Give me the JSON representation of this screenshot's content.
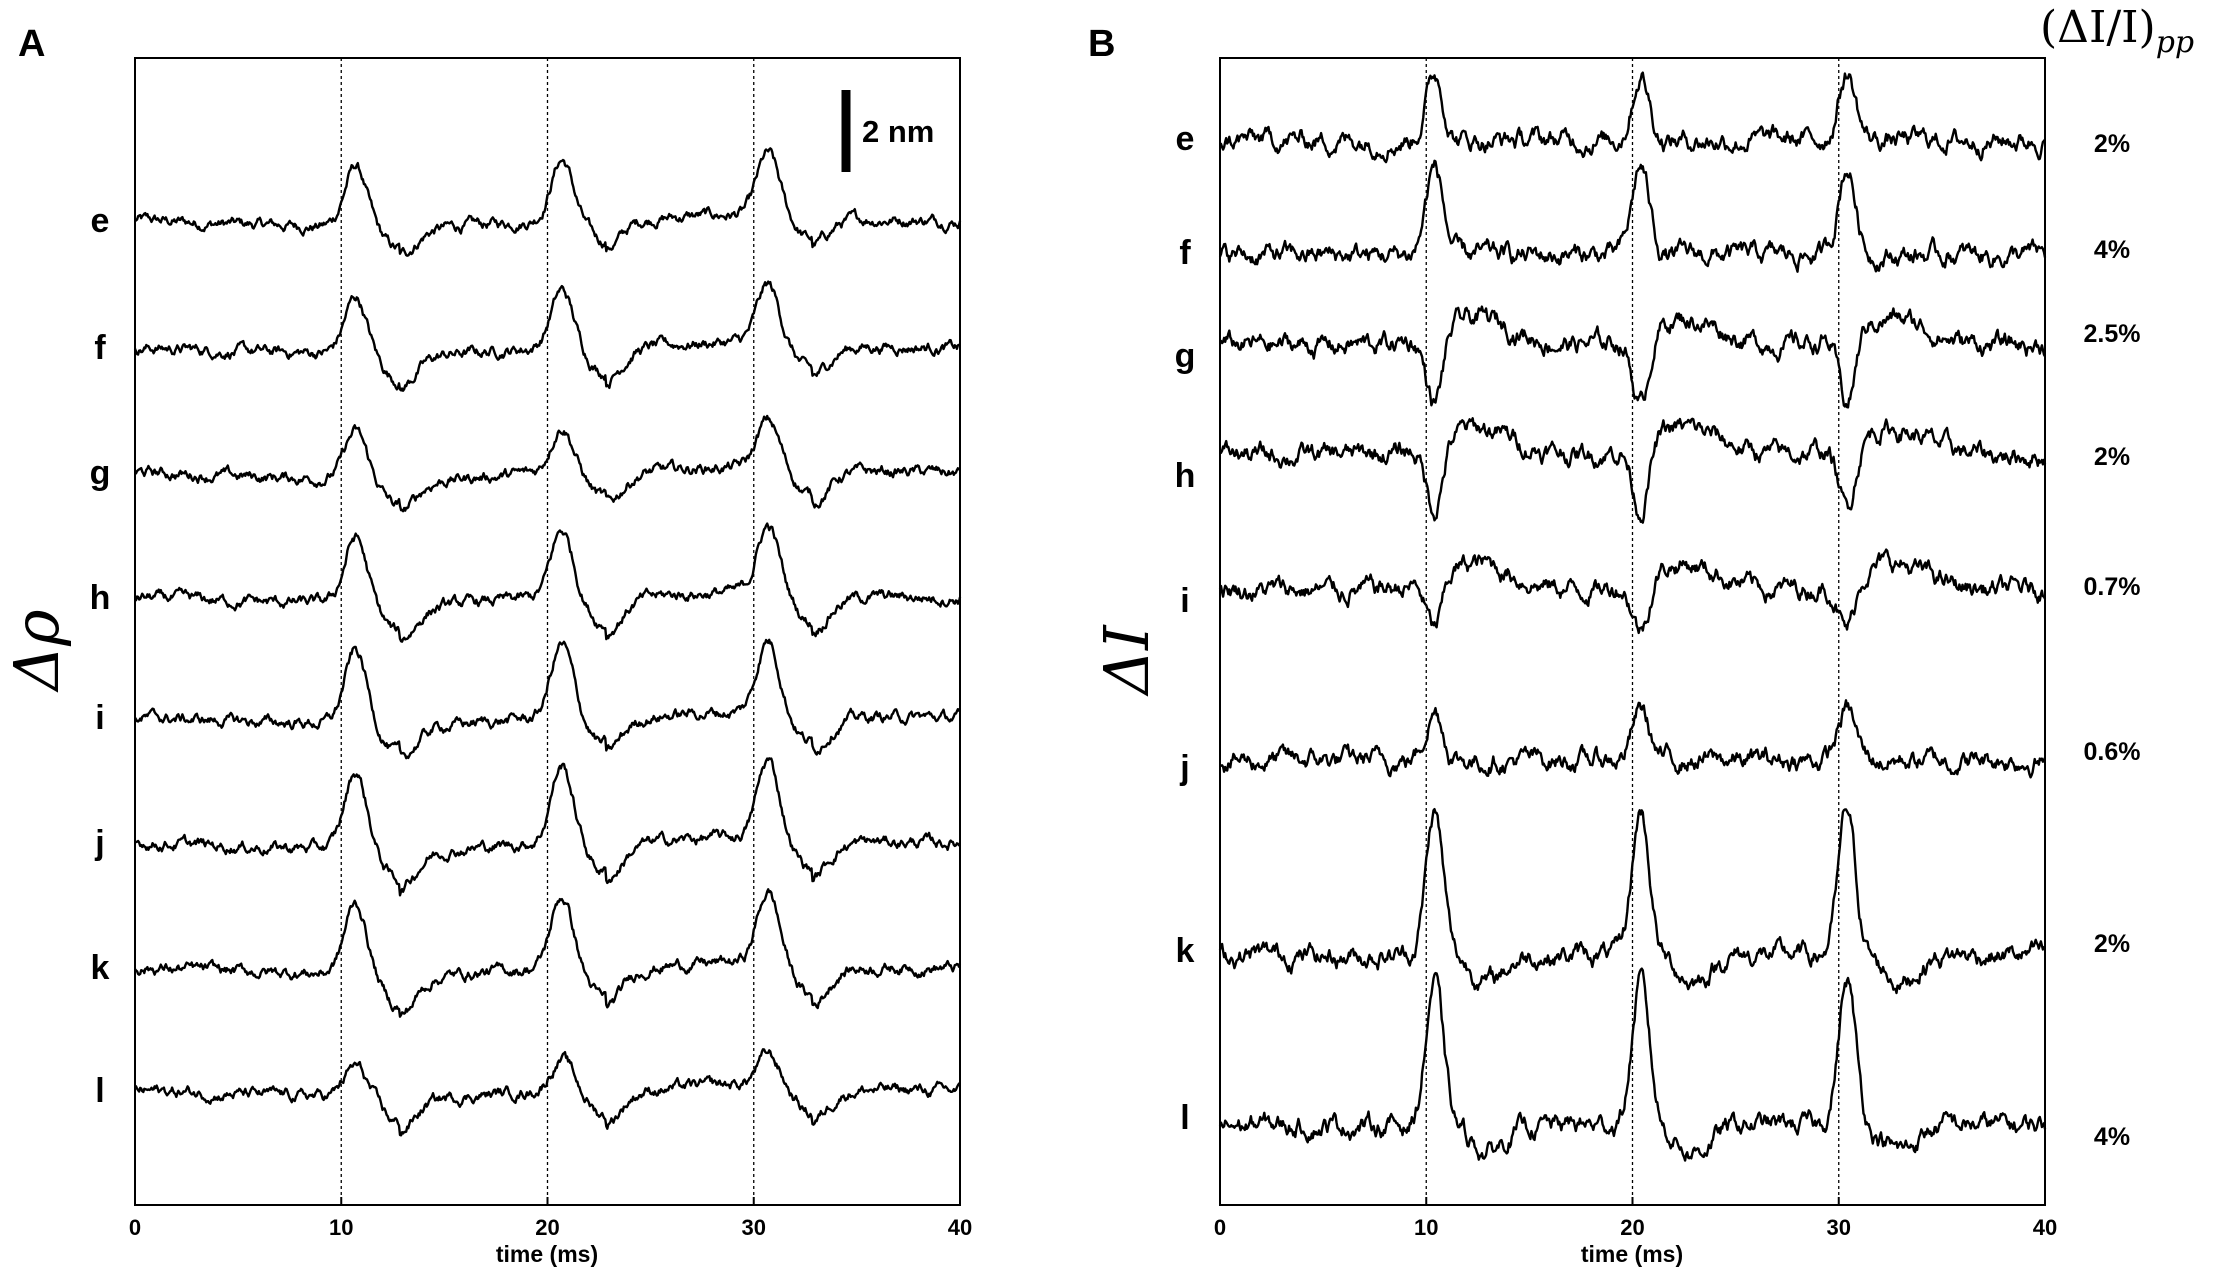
{
  "chart_data": [
    {
      "type": "line",
      "panel_label": "A",
      "ylabel": "Δρ",
      "xlabel": "time (ms)",
      "xlim": [
        0,
        40
      ],
      "x_ticks": [
        "0",
        "10",
        "20",
        "30",
        "40"
      ],
      "vertical_markers_ms": [
        10,
        20,
        30
      ],
      "scale_bar_label": "2 nm",
      "series": [
        {
          "name": "e",
          "baseline": 0,
          "peak": 3.0,
          "trough": -1.2
        },
        {
          "name": "f",
          "baseline": 0,
          "peak": 2.8,
          "trough": -1.4
        },
        {
          "name": "g",
          "baseline": 0,
          "peak": 2.3,
          "trough": -1.4
        },
        {
          "name": "h",
          "baseline": 0,
          "peak": 3.3,
          "trough": -1.5
        },
        {
          "name": "i",
          "baseline": 0,
          "peak": 3.6,
          "trough": -1.5
        },
        {
          "name": "j",
          "baseline": 0,
          "peak": 3.8,
          "trough": -1.6
        },
        {
          "name": "k",
          "baseline": 0,
          "peak": 3.5,
          "trough": -1.7
        },
        {
          "name": "l",
          "baseline": 0,
          "peak": 1.5,
          "trough": -1.4
        }
      ]
    },
    {
      "type": "line",
      "panel_label": "B",
      "ylabel": "ΔI",
      "xlabel": "time (ms)",
      "xlim": [
        0,
        40
      ],
      "x_ticks": [
        "0",
        "10",
        "20",
        "30",
        "40"
      ],
      "vertical_markers_ms": [
        10,
        20,
        30
      ],
      "right_header": "(ΔI/I)pp",
      "series": [
        {
          "name": "e",
          "amplitude": "2%",
          "shape": "peak"
        },
        {
          "name": "f",
          "amplitude": "4%",
          "shape": "peak"
        },
        {
          "name": "g",
          "amplitude": "2.5%",
          "shape": "dip"
        },
        {
          "name": "h",
          "amplitude": "2%",
          "shape": "dip"
        },
        {
          "name": "i",
          "amplitude": "0.7%",
          "shape": "dip"
        },
        {
          "name": "j",
          "amplitude": "0.6%",
          "shape": "peak"
        },
        {
          "name": "k",
          "amplitude": "2%",
          "shape": "peak"
        },
        {
          "name": "l",
          "amplitude": "4%",
          "shape": "peak"
        }
      ]
    }
  ]
}
